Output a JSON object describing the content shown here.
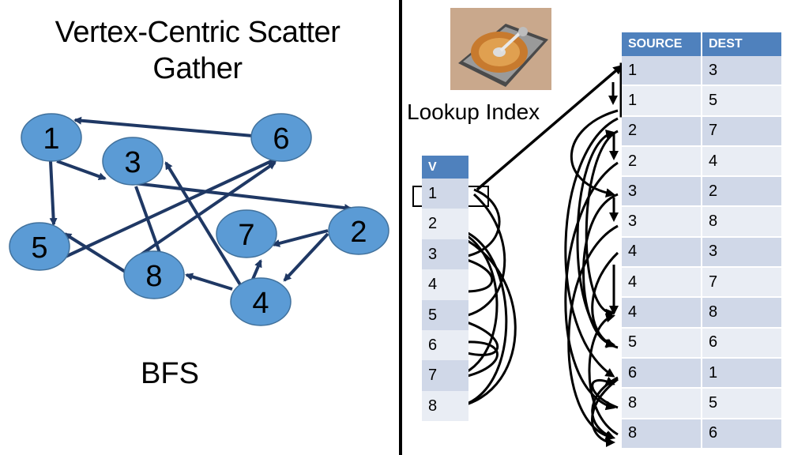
{
  "title": {
    "line1": "Vertex-Centric Scatter",
    "line2": "Gather"
  },
  "caption": "BFS",
  "lookup_label": "Lookup Index",
  "colors": {
    "node_fill": "#5b9bd5",
    "node_stroke": "#41719c",
    "edge": "#1f3864",
    "header": "#4f81bd",
    "row_odd": "#d0d8e8",
    "row_even": "#e9edf4"
  },
  "graph": {
    "nodes": [
      "1",
      "3",
      "6",
      "5",
      "7",
      "2",
      "8",
      "4"
    ]
  },
  "vertex_table": {
    "header": "V",
    "rows": [
      "1",
      "2",
      "3",
      "4",
      "5",
      "6",
      "7",
      "8"
    ]
  },
  "edge_table": {
    "headers": [
      "SOURCE",
      "DEST"
    ],
    "rows": [
      [
        "1",
        "3"
      ],
      [
        "1",
        "5"
      ],
      [
        "2",
        "7"
      ],
      [
        "2",
        "4"
      ],
      [
        "3",
        "2"
      ],
      [
        "3",
        "8"
      ],
      [
        "4",
        "3"
      ],
      [
        "4",
        "7"
      ],
      [
        "4",
        "8"
      ],
      [
        "5",
        "6"
      ],
      [
        "6",
        "1"
      ],
      [
        "8",
        "5"
      ],
      [
        "8",
        "6"
      ]
    ]
  },
  "icons": {
    "disk": "hard-disk-icon"
  }
}
